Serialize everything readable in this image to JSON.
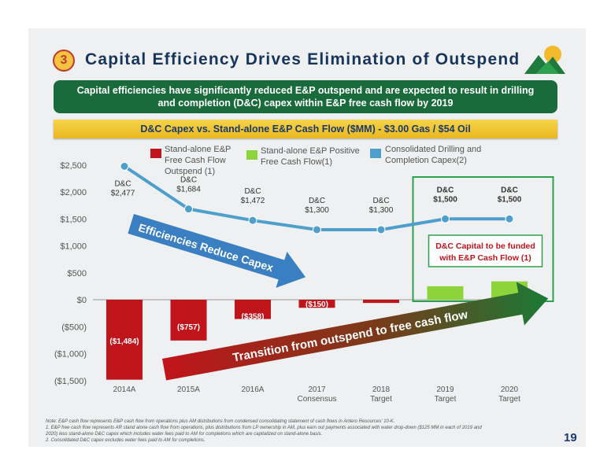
{
  "header": {
    "badge": "3",
    "title": "Capital Efficiency Drives Elimination of Outspend"
  },
  "banner": {
    "line1": "Capital efficiencies have significantly reduced E&P outspend and are expected to result in drilling",
    "line2": "and completion (D&C) capex within E&P free cash flow by 2019"
  },
  "legend": {
    "red": [
      "Stand-alone E&P",
      "Free Cash Flow",
      "Outspend (1)"
    ],
    "green": [
      "Stand-alone E&P Positive",
      "Free Cash Flow(1)"
    ],
    "blue": [
      "Consolidated Drilling and",
      "Completion Capex(2)"
    ]
  },
  "colors": {
    "red": "#c0141b",
    "green": "#8dd43a",
    "blue": "#4f9fcc",
    "arrow_blue": "#3a7fc1",
    "box_green": "#2e9f4c"
  },
  "chart_data": {
    "type": "bar",
    "title": "D&C Capex vs. Stand-alone E&P Cash Flow ($MM) - $3.00 Gas / $54 Oil",
    "categories": [
      [
        "2014A"
      ],
      [
        "2015A"
      ],
      [
        "2016A"
      ],
      [
        "2017",
        "Consensus"
      ],
      [
        "2018",
        "Target"
      ],
      [
        "2019",
        "Target"
      ],
      [
        "2020",
        "Target"
      ]
    ],
    "ylim": [
      -1500,
      2500
    ],
    "yticks": [
      2500,
      2000,
      1500,
      1000,
      500,
      0,
      -500,
      -1000,
      -1500
    ],
    "ytick_labels": [
      "$2,500",
      "$2,000",
      "$1,500",
      "$1,000",
      "$500",
      "$0",
      "($500)",
      "($1,000)",
      "($1,500)"
    ],
    "series": [
      {
        "name": "Stand-alone E&P Free Cash Flow",
        "type": "bar",
        "values": [
          -1484,
          -757,
          -358,
          -150,
          -60,
          250,
          340
        ],
        "labels": [
          "($1,484)",
          "($757)",
          "($358)",
          "($150)",
          "",
          "",
          ""
        ]
      },
      {
        "name": "Consolidated Drilling and Completion Capex",
        "type": "line",
        "values": [
          2477,
          1684,
          1472,
          1300,
          1300,
          1500,
          1500
        ],
        "labels": [
          [
            "D&C",
            "$2,477"
          ],
          [
            "D&C",
            "$1,684"
          ],
          [
            "D&C",
            "$1,472"
          ],
          [
            "D&C",
            "$1,300"
          ],
          [
            "D&C",
            "$1,300"
          ],
          [
            "D&C",
            "$1,500"
          ],
          [
            "D&C",
            "$1,500"
          ]
        ]
      }
    ],
    "annotations": {
      "arrow1": "Efficiencies Reduce Capex",
      "arrow2": "Transition from outspend to free cash flow",
      "box": [
        "D&C Capital to be funded",
        "with E&P Cash Flow (1)"
      ]
    }
  },
  "footnotes": [
    "Note: E&P cash flow represents E&P cash flow from operations plus AM distributions from condensed consolidating statement of cash flows in Antero Resources' 10-K.",
    "1.  E&P free cash flow represents AR stand alone cash flow from operations, plus distributions from LP ownership in AM, plus earn out payments associated with water drop-down ($125 MM in each of 2019 and",
    "     2020) less stand-alone D&C capex which includes water fees paid to AM for completions which are capitalized on stand-alone basis.",
    "2.  Consolidated D&C capex excludes water fees paid to AM for completions."
  ],
  "page_number": "19"
}
